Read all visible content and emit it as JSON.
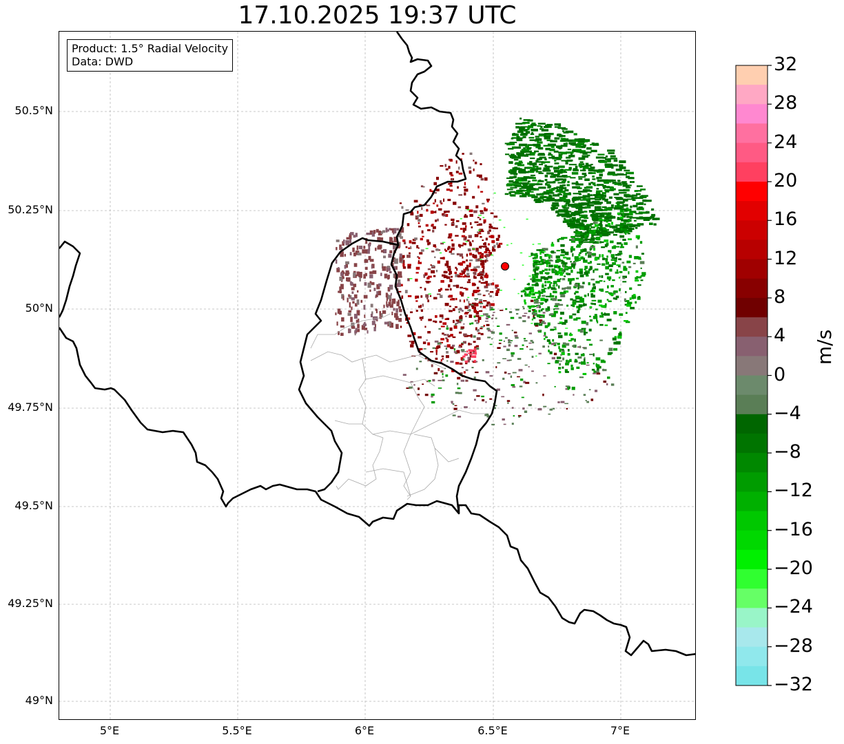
{
  "title": "17.10.2025 19:37 UTC",
  "info": {
    "product": "Product: 1.5° Radial Velocity",
    "data": "Data: DWD"
  },
  "map": {
    "lat_ticks": [
      "50.5°N",
      "50.25°N",
      "50°N",
      "49.75°N",
      "49.5°N",
      "49.25°N",
      "49°N"
    ],
    "lon_ticks": [
      "5°E",
      "5.5°E",
      "6°E",
      "6.5°E",
      "7°E"
    ],
    "lat_range": [
      48.95,
      50.7
    ],
    "lon_range": [
      4.8,
      7.3
    ],
    "radar_site": {
      "lon": 6.547,
      "lat": 50.11,
      "color": "#ff0000"
    },
    "border_color": "#000000",
    "subdivision_color": "#aaaaaa",
    "grid": true
  },
  "colorbar": {
    "unit": "m/s",
    "range": [
      -32,
      32
    ],
    "tick_labels": [
      "32",
      "28",
      "24",
      "20",
      "16",
      "12",
      "8",
      "4",
      "0",
      "−4",
      "−8",
      "−12",
      "−16",
      "−20",
      "−24",
      "−28",
      "−32"
    ],
    "colors_top_to_bottom": [
      "#ffcfb0",
      "#ffa8c4",
      "#ff88d0",
      "#ff70a0",
      "#ff5a84",
      "#ff4060",
      "#ff0000",
      "#e20000",
      "#cc0000",
      "#b80000",
      "#a00000",
      "#880000",
      "#700000",
      "#884448",
      "#886070",
      "#887878",
      "#6c8a6c",
      "#5a7e56",
      "#006600",
      "#007400",
      "#008800",
      "#009c00",
      "#00b000",
      "#00c800",
      "#00d800",
      "#00f000",
      "#30ff30",
      "#66ff66",
      "#99f5c8",
      "#a8e8ec",
      "#90e8ec",
      "#78e4e8"
    ]
  }
}
